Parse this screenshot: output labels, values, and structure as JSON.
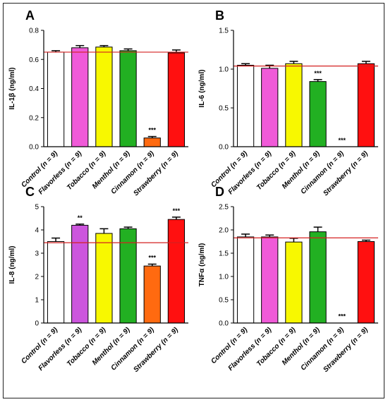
{
  "chart_data": [
    {
      "panel_letter": "A",
      "type": "bar",
      "ylabel": "IL-1β (ng/ml)",
      "ylim": [
        0,
        0.8
      ],
      "yticks": [
        "0.0",
        "0.2",
        "0.4",
        "0.6",
        "0.8"
      ],
      "categories": [
        "Control (n = 9)",
        "Flavorless (n = 9)",
        "Tobacco (n = 9)",
        "Menthol (n = 9)",
        "Cinnamon (n = 9)",
        "Strawberry (n = 9)"
      ],
      "values": [
        0.65,
        0.68,
        0.685,
        0.66,
        0.06,
        0.645
      ],
      "errors": [
        0.01,
        0.015,
        0.01,
        0.012,
        0.01,
        0.02
      ],
      "significance": [
        "",
        "",
        "",
        "",
        "***",
        ""
      ],
      "reference_line": 0.65,
      "colors": [
        "#ffffff",
        "#f05ad8",
        "#f8f800",
        "#22b022",
        "#ff6a10",
        "#ff1010"
      ]
    },
    {
      "panel_letter": "B",
      "type": "bar",
      "ylabel": "IL-6 (ng/ml)",
      "ylim": [
        0,
        1.5
      ],
      "yticks": [
        "0.0",
        "0.5",
        "1.0",
        "1.5"
      ],
      "categories": [
        "Control (n = 9)",
        "Flavorless (n = 9)",
        "Tobacco (n = 9)",
        "Menthol (n = 9)",
        "Cinnamon (n = 9)",
        "Strawberry (n = 9)"
      ],
      "values": [
        1.05,
        1.01,
        1.07,
        0.84,
        0.0,
        1.07
      ],
      "errors": [
        0.02,
        0.04,
        0.03,
        0.025,
        0.0,
        0.03
      ],
      "significance": [
        "",
        "",
        "",
        "***",
        "***",
        ""
      ],
      "reference_line": 1.04,
      "colors": [
        "#ffffff",
        "#f05ad8",
        "#f8f800",
        "#22b022",
        "#ff6a10",
        "#ff1010"
      ]
    },
    {
      "panel_letter": "C",
      "type": "bar",
      "ylabel": "IL-8 (ng/ml)",
      "ylim": [
        0,
        5
      ],
      "yticks": [
        "0",
        "1",
        "2",
        "3",
        "4",
        "5"
      ],
      "categories": [
        "Control (n = 9)",
        "Flavorless (n = 9)",
        "Tobacco (n = 9)",
        "Menthol (n = 9)",
        "Cinnamon (n = 9)",
        "Strawberry (n = 9)"
      ],
      "values": [
        3.5,
        4.2,
        3.85,
        4.05,
        2.45,
        4.45
      ],
      "errors": [
        0.15,
        0.05,
        0.2,
        0.07,
        0.08,
        0.1
      ],
      "significance": [
        "",
        "**",
        "",
        "",
        "***",
        "***"
      ],
      "reference_line": 3.45,
      "colors": [
        "#ffffff",
        "#cc55dd",
        "#f8f800",
        "#22b022",
        "#ff6a10",
        "#ff1010"
      ]
    },
    {
      "panel_letter": "D",
      "type": "bar",
      "ylabel": "TNFα (ng/ml)",
      "ylim": [
        0,
        2.5
      ],
      "yticks": [
        "0.0",
        "0.5",
        "1.0",
        "1.5",
        "2.0",
        "2.5"
      ],
      "categories": [
        "Control (n = 9)",
        "Flavorless (n = 9)",
        "Tobacco (n = 9)",
        "Menthol (n = 9)",
        "Cinnamon (n = 9)",
        "Strawberry (n = 9)"
      ],
      "values": [
        1.85,
        1.85,
        1.74,
        1.96,
        0.01,
        1.75
      ],
      "errors": [
        0.06,
        0.04,
        0.08,
        0.1,
        0.0,
        0.03
      ],
      "significance": [
        "",
        "",
        "",
        "",
        "***",
        ""
      ],
      "reference_line": 1.83,
      "colors": [
        "#ffffff",
        "#f05ad8",
        "#f8f800",
        "#22b022",
        "#ff6a10",
        "#ff1010"
      ]
    }
  ]
}
